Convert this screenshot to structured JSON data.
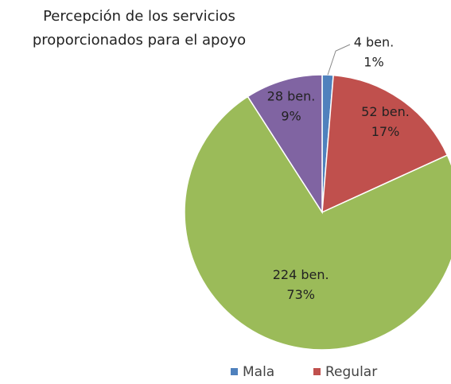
{
  "chart_data": {
    "type": "pie",
    "title": "Percepción de los servicios proporcionados para el apoyo",
    "categories": [
      "Mala",
      "Regular",
      null,
      null
    ],
    "values": [
      4,
      52,
      224,
      28
    ],
    "value_labels": [
      "4 ben.",
      "52 ben.",
      "224 ben.",
      "28 ben."
    ],
    "percent_labels": [
      "1%",
      "17%",
      "73%",
      "9%"
    ],
    "colors": [
      "#4f81bd",
      "#c0504d",
      "#9bbb59",
      "#8064a2"
    ]
  }
}
